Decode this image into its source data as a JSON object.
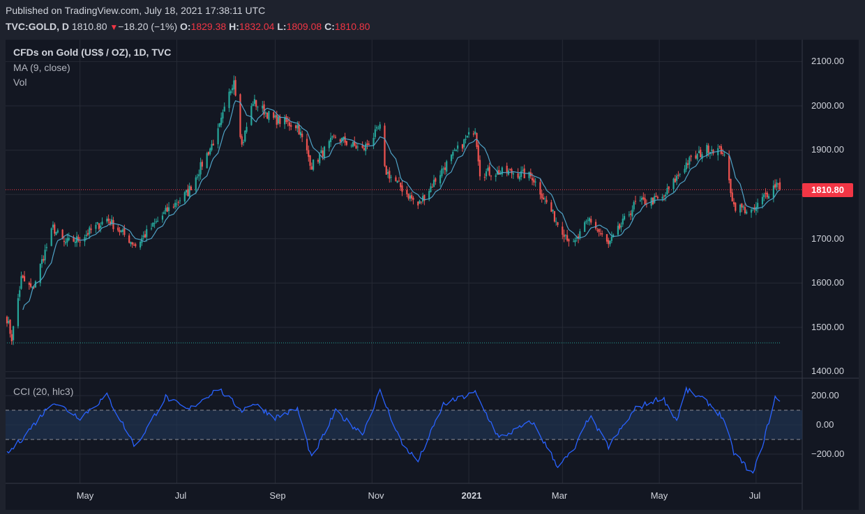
{
  "header": {
    "published": "Published on TradingView.com, July 18, 2021 17:38:11 UTC",
    "symbol": "TVC:GOLD, D",
    "last": "1810.80",
    "change_icon": "down-triangle-icon",
    "change": "−18.20 (−1%)",
    "o_label": "O:",
    "o_value": "1829.38",
    "h_label": "H:",
    "h_value": "1832.04",
    "l_label": "L:",
    "l_value": "1809.08",
    "c_label": "C:",
    "c_value": "1810.80"
  },
  "legend": {
    "title": "CFDs on Gold (US$ / OZ), 1D, TVC",
    "ma": "MA (9, close)",
    "vol": "Vol",
    "cci": "CCI (20, hlc3)"
  },
  "price_axis_labels": [
    "2100.00",
    "2000.00",
    "1900.00",
    "1800.00",
    "1700.00",
    "1600.00",
    "1500.00",
    "1400.00"
  ],
  "cci_axis_labels": [
    "200.00",
    "0.00",
    "−200.00"
  ],
  "price_tag": "1810.80",
  "time_labels": [
    {
      "label": "May",
      "bold": false
    },
    {
      "label": "Jul",
      "bold": false
    },
    {
      "label": "Sep",
      "bold": false
    },
    {
      "label": "Nov",
      "bold": false
    },
    {
      "label": "2021",
      "bold": true
    },
    {
      "label": "Mar",
      "bold": false
    },
    {
      "label": "May",
      "bold": false
    },
    {
      "label": "Jul",
      "bold": false
    }
  ],
  "colors": {
    "background": "#1e222d",
    "up": "#26a69a",
    "down": "#ef5350",
    "ma_line": "#4fa3c7",
    "cci_line": "#2962ff",
    "cci_band": "#1f3350",
    "last_price": "#f23645"
  },
  "chart_data": [
    {
      "type": "candlestick",
      "title": "CFDs on Gold (US$ / OZ), 1D, TVC",
      "ylim": [
        1400,
        2150
      ],
      "last_close": 1810.8,
      "ma_period": 9,
      "x_ticks": [
        "May",
        "Jul",
        "Sep",
        "Nov",
        "2021",
        "Mar",
        "May",
        "Jul"
      ],
      "close_path": [
        {
          "date": "2020-03-16",
          "close": 1520
        },
        {
          "date": "2020-03-19",
          "close": 1475
        },
        {
          "date": "2020-03-25",
          "close": 1610
        },
        {
          "date": "2020-04-01",
          "close": 1585
        },
        {
          "date": "2020-04-14",
          "close": 1725
        },
        {
          "date": "2020-04-21",
          "close": 1690
        },
        {
          "date": "2020-05-01",
          "close": 1700
        },
        {
          "date": "2020-05-18",
          "close": 1745
        },
        {
          "date": "2020-06-05",
          "close": 1685
        },
        {
          "date": "2020-06-24",
          "close": 1760
        },
        {
          "date": "2020-07-08",
          "close": 1805
        },
        {
          "date": "2020-07-27",
          "close": 1940
        },
        {
          "date": "2020-08-06",
          "close": 2063
        },
        {
          "date": "2020-08-11",
          "close": 1910
        },
        {
          "date": "2020-08-18",
          "close": 2010
        },
        {
          "date": "2020-08-31",
          "close": 1970
        },
        {
          "date": "2020-09-15",
          "close": 1955
        },
        {
          "date": "2020-09-24",
          "close": 1865
        },
        {
          "date": "2020-10-09",
          "close": 1930
        },
        {
          "date": "2020-10-26",
          "close": 1900
        },
        {
          "date": "2020-11-06",
          "close": 1950
        },
        {
          "date": "2020-11-09",
          "close": 1855
        },
        {
          "date": "2020-11-30",
          "close": 1775
        },
        {
          "date": "2020-12-16",
          "close": 1860
        },
        {
          "date": "2021-01-05",
          "close": 1950
        },
        {
          "date": "2021-01-08",
          "close": 1850
        },
        {
          "date": "2021-01-29",
          "close": 1850
        },
        {
          "date": "2021-02-10",
          "close": 1840
        },
        {
          "date": "2021-02-26",
          "close": 1735
        },
        {
          "date": "2021-03-08",
          "close": 1685
        },
        {
          "date": "2021-03-18",
          "close": 1745
        },
        {
          "date": "2021-03-30",
          "close": 1685
        },
        {
          "date": "2021-04-16",
          "close": 1780
        },
        {
          "date": "2021-05-03",
          "close": 1790
        },
        {
          "date": "2021-05-18",
          "close": 1870
        },
        {
          "date": "2021-06-01",
          "close": 1905
        },
        {
          "date": "2021-06-10",
          "close": 1898
        },
        {
          "date": "2021-06-17",
          "close": 1775
        },
        {
          "date": "2021-06-29",
          "close": 1760
        },
        {
          "date": "2021-07-06",
          "close": 1795
        },
        {
          "date": "2021-07-15",
          "close": 1829
        },
        {
          "date": "2021-07-16",
          "close": 1810.8
        }
      ]
    },
    {
      "type": "line",
      "title": "CCI (20, hlc3)",
      "ylim": [
        -340,
        290
      ],
      "bands": [
        -100,
        100
      ],
      "series": [
        {
          "name": "CCI (20, hlc3)",
          "points": [
            {
              "date": "2020-03-16",
              "value": -200
            },
            {
              "date": "2020-03-25",
              "value": -100
            },
            {
              "date": "2020-04-14",
              "value": 160
            },
            {
              "date": "2020-05-01",
              "value": 50
            },
            {
              "date": "2020-05-18",
              "value": 200
            },
            {
              "date": "2020-06-05",
              "value": -150
            },
            {
              "date": "2020-06-24",
              "value": 190
            },
            {
              "date": "2020-07-08",
              "value": 100
            },
            {
              "date": "2020-07-27",
              "value": 250
            },
            {
              "date": "2020-08-11",
              "value": 100
            },
            {
              "date": "2020-08-18",
              "value": 150
            },
            {
              "date": "2020-09-01",
              "value": 50
            },
            {
              "date": "2020-09-15",
              "value": 110
            },
            {
              "date": "2020-09-24",
              "value": -230
            },
            {
              "date": "2020-10-09",
              "value": 90
            },
            {
              "date": "2020-10-26",
              "value": -60
            },
            {
              "date": "2020-11-06",
              "value": 230
            },
            {
              "date": "2020-11-20",
              "value": -130
            },
            {
              "date": "2020-11-30",
              "value": -250
            },
            {
              "date": "2020-12-16",
              "value": 140
            },
            {
              "date": "2021-01-05",
              "value": 220
            },
            {
              "date": "2021-01-20",
              "value": -90
            },
            {
              "date": "2021-02-10",
              "value": 20
            },
            {
              "date": "2021-02-26",
              "value": -280
            },
            {
              "date": "2021-03-08",
              "value": -180
            },
            {
              "date": "2021-03-18",
              "value": 60
            },
            {
              "date": "2021-03-30",
              "value": -150
            },
            {
              "date": "2021-04-16",
              "value": 110
            },
            {
              "date": "2021-05-03",
              "value": 190
            },
            {
              "date": "2021-05-12",
              "value": 30
            },
            {
              "date": "2021-05-18",
              "value": 240
            },
            {
              "date": "2021-06-01",
              "value": 150
            },
            {
              "date": "2021-06-10",
              "value": 50
            },
            {
              "date": "2021-06-17",
              "value": -190
            },
            {
              "date": "2021-06-29",
              "value": -340
            },
            {
              "date": "2021-07-06",
              "value": -100
            },
            {
              "date": "2021-07-13",
              "value": 190
            },
            {
              "date": "2021-07-16",
              "value": 150
            }
          ]
        }
      ]
    }
  ]
}
